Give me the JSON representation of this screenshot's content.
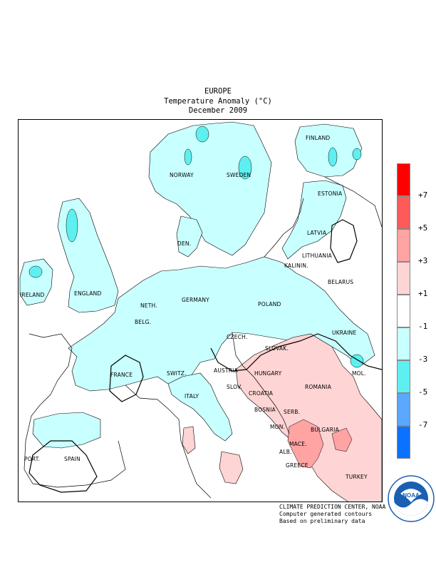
{
  "header": {
    "region": "EUROPE",
    "product": "Temperature Anomaly (°C)",
    "period": "December 2009"
  },
  "map": {
    "countries": [
      {
        "id": "finland",
        "label": "FINLAND"
      },
      {
        "id": "norway",
        "label": "NORWAY"
      },
      {
        "id": "sweden",
        "label": "SWEDEN"
      },
      {
        "id": "estonia",
        "label": "ESTONIA"
      },
      {
        "id": "latvia",
        "label": "LATVIA"
      },
      {
        "id": "den",
        "label": "DEN."
      },
      {
        "id": "lithuania",
        "label": "LITHUANIA"
      },
      {
        "id": "kalinin",
        "label": "KALININ."
      },
      {
        "id": "belarus",
        "label": "BELARUS"
      },
      {
        "id": "ireland",
        "label": "IRELAND"
      },
      {
        "id": "england",
        "label": "ENGLAND"
      },
      {
        "id": "neth",
        "label": "NETH."
      },
      {
        "id": "germany",
        "label": "GERMANY"
      },
      {
        "id": "poland",
        "label": "POLAND"
      },
      {
        "id": "belg",
        "label": "BELG."
      },
      {
        "id": "ukraine",
        "label": "UKRAINE"
      },
      {
        "id": "czech",
        "label": "CZECH."
      },
      {
        "id": "slovak",
        "label": "SLOVAK."
      },
      {
        "id": "france",
        "label": "FRANCE"
      },
      {
        "id": "switz",
        "label": "SWITZ."
      },
      {
        "id": "austria",
        "label": "AUSTRIA"
      },
      {
        "id": "hungary",
        "label": "HUNGARY"
      },
      {
        "id": "mol",
        "label": "MOL."
      },
      {
        "id": "slov",
        "label": "SLOV."
      },
      {
        "id": "croatia",
        "label": "CROATIA"
      },
      {
        "id": "romania",
        "label": "ROMANIA"
      },
      {
        "id": "italy",
        "label": "ITALY"
      },
      {
        "id": "bosnia",
        "label": "BOSNIA"
      },
      {
        "id": "serb",
        "label": "SERB."
      },
      {
        "id": "mon",
        "label": "MON."
      },
      {
        "id": "bulgaria",
        "label": "BULGARIA"
      },
      {
        "id": "mace",
        "label": "MACE."
      },
      {
        "id": "alb",
        "label": "ALB."
      },
      {
        "id": "port",
        "label": "PORT."
      },
      {
        "id": "spain",
        "label": "SPAIN"
      },
      {
        "id": "greece",
        "label": "GREECE"
      },
      {
        "id": "turkey",
        "label": "TURKEY"
      }
    ]
  },
  "legend": {
    "bins": [
      {
        "color": "#ff0000"
      },
      {
        "color": "#ff5a5a"
      },
      {
        "color": "#ffa3a3"
      },
      {
        "color": "#ffd4d4"
      },
      {
        "color": "#ffffff"
      },
      {
        "color": "#c8ffff"
      },
      {
        "color": "#5ef0f0"
      },
      {
        "color": "#5aa8ff"
      },
      {
        "color": "#0a72ff"
      }
    ],
    "labels": [
      "+7",
      "+5",
      "+3",
      "+1",
      "-1",
      "-3",
      "-5",
      "-7"
    ]
  },
  "credit": {
    "line1": "CLIMATE PREDICTION CENTER, NOAA",
    "line2": "Computer generated contours",
    "line3": "Based on preliminary data"
  },
  "logo": {
    "text": "NOAA",
    "ring_text": "NATIONAL OCEANIC AND ATMOSPHERIC ADMINISTRATION · U.S. DEPARTMENT OF COMMERCE",
    "icon": "noaa-seal-icon"
  }
}
